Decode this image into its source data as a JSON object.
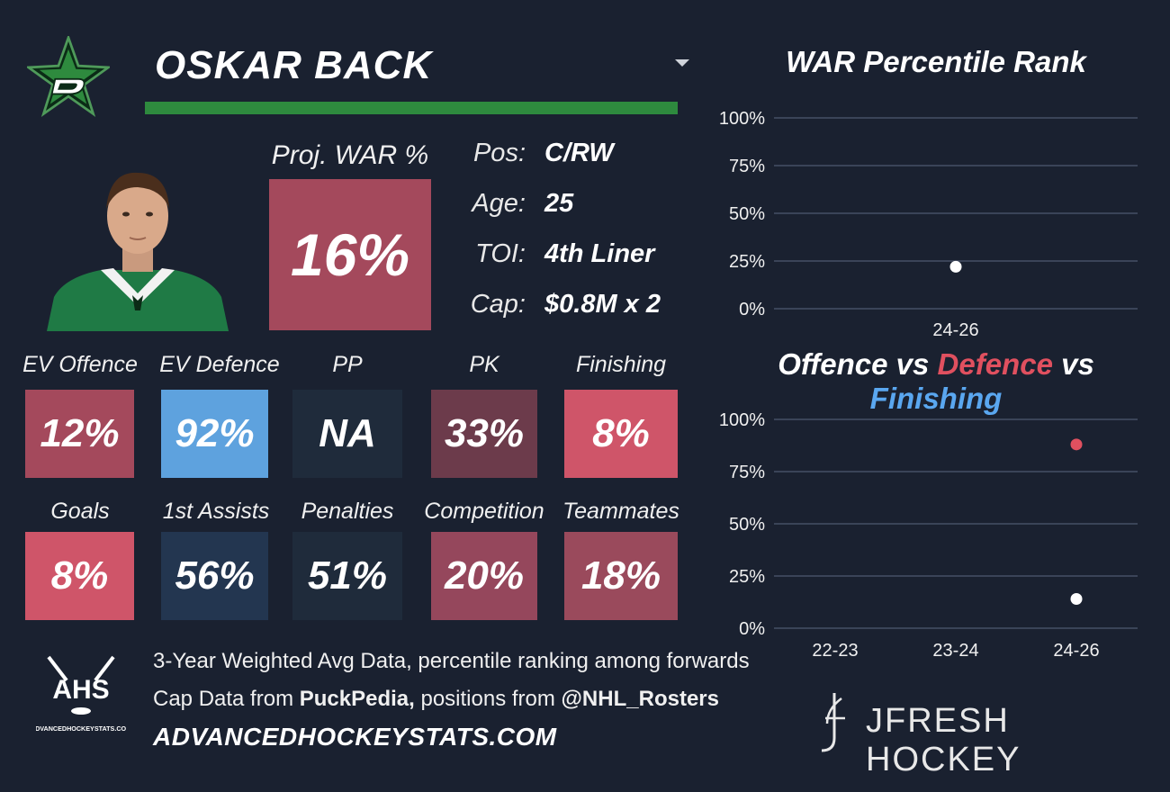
{
  "player": {
    "name": "OSKAR BACK",
    "team_colors": {
      "primary": "#2e8a3e",
      "dark": "#0b2b16"
    }
  },
  "projection": {
    "label": "Proj. WAR %",
    "value": "16%",
    "color": "#a4495c"
  },
  "info": [
    {
      "key": "Pos:",
      "value": "C/RW"
    },
    {
      "key": "Age:",
      "value": "25"
    },
    {
      "key": "TOI:",
      "value": "4th Liner"
    },
    {
      "key": "Cap:",
      "value": "$0.8M x 2"
    }
  ],
  "stats_row1": [
    {
      "label": "EV Offence",
      "value": "12%",
      "color": "#a4495c"
    },
    {
      "label": "EV Defence",
      "value": "92%",
      "color": "#5ea2de"
    },
    {
      "label": "PP",
      "value": "NA",
      "color": "#1f2b3b"
    },
    {
      "label": "PK",
      "value": "33%",
      "color": "#6c3b4b"
    },
    {
      "label": "Finishing",
      "value": "8%",
      "color": "#cf5569"
    }
  ],
  "stats_row2": [
    {
      "label": "Goals",
      "value": "8%",
      "color": "#cf5569"
    },
    {
      "label": "1st Assists",
      "value": "56%",
      "color": "#233650"
    },
    {
      "label": "Penalties",
      "value": "51%",
      "color": "#1f2b3b"
    },
    {
      "label": "Competition",
      "value": "20%",
      "color": "#95475c"
    },
    {
      "label": "Teammates",
      "value": "18%",
      "color": "#9a4a5c"
    }
  ],
  "chart_data": [
    {
      "type": "scatter",
      "title": "WAR Percentile Rank",
      "categories": [
        "24-26"
      ],
      "series": [
        {
          "values": [
            22
          ],
          "color": "#ffffff"
        }
      ],
      "yticks": [
        "100%",
        "75%",
        "50%",
        "25%",
        "0%"
      ],
      "ylim": [
        0,
        100
      ],
      "grid": true
    },
    {
      "type": "scatter",
      "title": "Offence vs Defence vs Finishing",
      "title_parts": [
        {
          "text": "Offence",
          "color": "#ffffff"
        },
        {
          "text": " vs ",
          "color": "#ffffff"
        },
        {
          "text": "Defence",
          "color": "#e0505f"
        },
        {
          "text": " vs ",
          "color": "#ffffff"
        },
        {
          "text": "Finishing",
          "color": "#5aa7f0"
        }
      ],
      "categories": [
        "22-23",
        "23-24",
        "24-26"
      ],
      "series": [
        {
          "values": [
            null,
            null,
            14
          ],
          "color": "#ffffff"
        },
        {
          "values": [
            null,
            null,
            88
          ],
          "color": "#e0505f"
        }
      ],
      "yticks": [
        "100%",
        "75%",
        "50%",
        "25%",
        "0%"
      ],
      "ylim": [
        0,
        100
      ],
      "grid": true
    }
  ],
  "footer": {
    "ahs_text": "AHS",
    "ahs_subtext": "ADVANCEDHOCKEYSTATS.COM",
    "line1": "3-Year Weighted Avg Data, percentile ranking among forwards",
    "line2_prefix": "Cap Data from ",
    "line2_source": "PuckPedia,",
    "line2_mid": " positions from ",
    "line2_handle": "@NHL_Rosters",
    "url": "ADVANCEDHOCKEYSTATS.COM",
    "brand": "JFRESH HOCKEY"
  }
}
